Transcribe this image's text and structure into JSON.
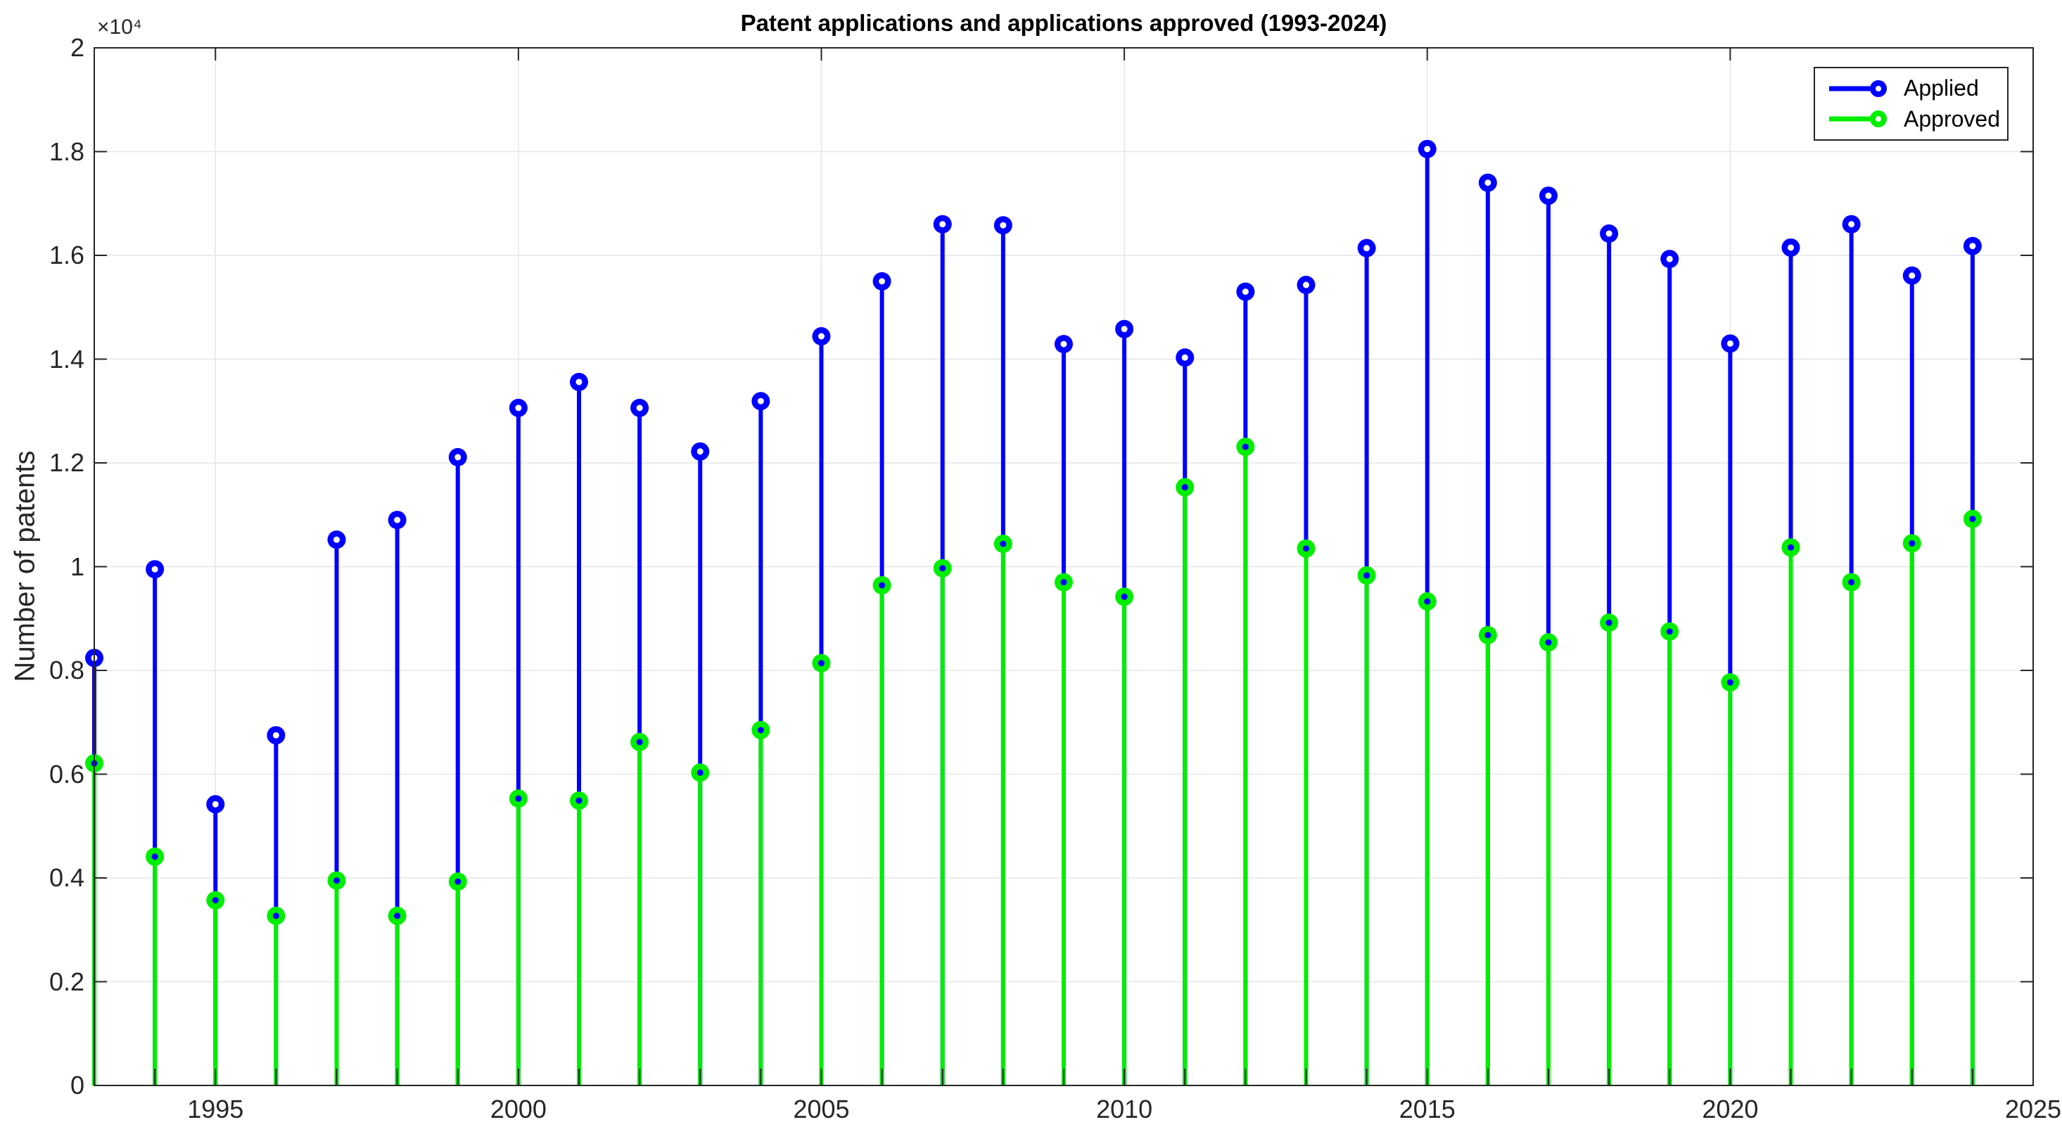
{
  "chart_data": {
    "type": "stem",
    "title": "Patent applications and applications approved (1993-2024)",
    "xlabel": "",
    "ylabel": "Number of patents",
    "y_axis_multiplier": "×10⁴",
    "xlim": [
      1993,
      2025
    ],
    "ylim": [
      0,
      20000
    ],
    "grid": true,
    "background": "#ffffff",
    "grid_color": "#e6e6e6",
    "axis_color": "#262626",
    "xticks": [
      1995,
      2000,
      2005,
      2010,
      2015,
      2020,
      2025
    ],
    "xtick_labels": [
      "1995",
      "2000",
      "2005",
      "2010",
      "2015",
      "2020",
      "2025"
    ],
    "minor_xticks_every_year": true,
    "yticks": [
      0,
      2000,
      4000,
      6000,
      8000,
      10000,
      12000,
      14000,
      16000,
      18000,
      20000
    ],
    "ytick_labels": [
      "0",
      "0.2",
      "0.4",
      "0.6",
      "0.8",
      "1",
      "1.2",
      "1.4",
      "1.6",
      "1.8",
      "2"
    ],
    "years": [
      1993,
      1994,
      1995,
      1996,
      1997,
      1998,
      1999,
      2000,
      2001,
      2002,
      2003,
      2004,
      2005,
      2006,
      2007,
      2008,
      2009,
      2010,
      2011,
      2012,
      2013,
      2014,
      2015,
      2016,
      2017,
      2018,
      2019,
      2020,
      2021,
      2022,
      2023,
      2024
    ],
    "series": [
      {
        "name": "Applied",
        "color": "#0000ff",
        "marker": "o",
        "values": [
          8240,
          9950,
          5420,
          6750,
          10520,
          10900,
          12110,
          13060,
          13560,
          13060,
          12220,
          13190,
          14440,
          15500,
          16600,
          16580,
          14290,
          14580,
          14030,
          15300,
          15430,
          16140,
          18050,
          17400,
          17150,
          16420,
          15930,
          14300,
          16150,
          16600,
          15610,
          16180
        ]
      },
      {
        "name": "Approved",
        "color": "#00ee00",
        "marker": "o",
        "values": [
          6210,
          4410,
          3570,
          3270,
          3950,
          3270,
          3930,
          5530,
          5490,
          6620,
          6030,
          6850,
          8140,
          9640,
          9970,
          10440,
          9700,
          9420,
          11530,
          12310,
          10350,
          9830,
          9330,
          8680,
          8540,
          8920,
          8750,
          7770,
          10370,
          9700,
          10450,
          10920
        ]
      }
    ],
    "legend": {
      "position": "top-right",
      "entries": [
        {
          "label": "Applied",
          "color": "#0000ff"
        },
        {
          "label": "Approved",
          "color": "#00ee00"
        }
      ]
    }
  }
}
